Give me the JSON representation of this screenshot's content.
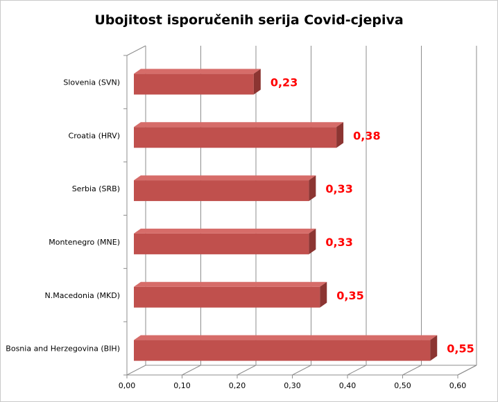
{
  "chart_data": {
    "type": "bar",
    "orientation": "horizontal",
    "style": "3d",
    "title": "Ubojitost isporučenih serija Covid-cjepiva",
    "categories": [
      "Slovenia (SVN)",
      "Croatia (HRV)",
      "Serbia (SRB)",
      "Montenegro (MNE)",
      "N.Macedonia (MKD)",
      "Bosnia and Herzegovina (BIH)"
    ],
    "values": [
      0.23,
      0.38,
      0.33,
      0.33,
      0.35,
      0.55
    ],
    "data_labels": [
      "0,23",
      "0,38",
      "0,33",
      "0,33",
      "0,35",
      "0,55"
    ],
    "xlim": [
      0,
      0.6
    ],
    "x_ticks": [
      "0,00",
      "0,10",
      "0,20",
      "0,30",
      "0,40",
      "0,50",
      "0,60"
    ],
    "grid": "vertical",
    "legend": "none",
    "colors": {
      "bar_face": "#c0504d",
      "bar_top": "#d66c69",
      "bar_side": "#8c3532",
      "label": "#ff0000",
      "grid": "#8c8c8c"
    }
  }
}
